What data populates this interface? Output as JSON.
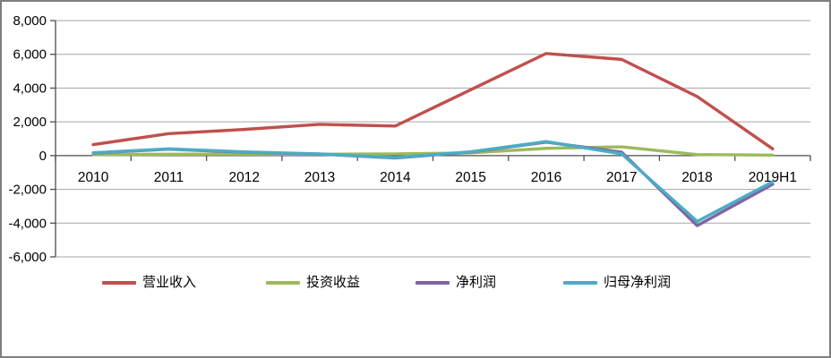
{
  "chart_data": {
    "type": "line",
    "title": "",
    "xlabel": "",
    "ylabel": "",
    "categories": [
      "2010",
      "2011",
      "2012",
      "2013",
      "2014",
      "2015",
      "2016",
      "2017",
      "2018",
      "2019H1"
    ],
    "series": [
      {
        "name": "营业收入",
        "color": "#C0504D",
        "values": [
          650,
          1300,
          1550,
          1850,
          1750,
          3900,
          6050,
          5700,
          3500,
          400
        ]
      },
      {
        "name": "投资收益",
        "color": "#9BBB59",
        "values": [
          60,
          80,
          90,
          80,
          100,
          160,
          430,
          520,
          60,
          30
        ]
      },
      {
        "name": "净利润",
        "color": "#8064A2",
        "values": [
          150,
          380,
          200,
          90,
          -140,
          210,
          800,
          200,
          -4150,
          -1700
        ]
      },
      {
        "name": "归母净利润",
        "color": "#4BACC6",
        "values": [
          170,
          400,
          220,
          100,
          -120,
          230,
          830,
          100,
          -3900,
          -1550
        ]
      }
    ],
    "ylim": [
      -6000,
      8000
    ],
    "ytick_step": 2000,
    "ytick_labels": [
      "8,000",
      "6,000",
      "4,000",
      "2,000",
      "0",
      "-2,000",
      "-4,000",
      "-6,000"
    ],
    "grid": true,
    "legend_position": "bottom"
  },
  "colors": {
    "background": "#FFFFFF",
    "border": "#7F7F7F",
    "grid": "#A6A6A6",
    "axis": "#4D4D4D",
    "text": "#000000"
  }
}
